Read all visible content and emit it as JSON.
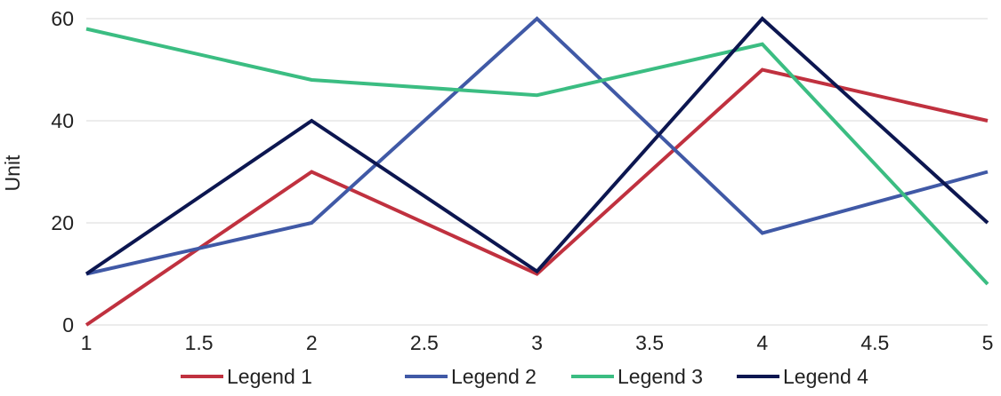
{
  "chart_data": {
    "type": "line",
    "title": "",
    "xlabel": "",
    "ylabel": "Unit",
    "x": [
      1,
      2,
      3,
      4,
      5
    ],
    "xlim": [
      1,
      5
    ],
    "ylim": [
      0,
      60
    ],
    "x_ticks": [
      "1",
      "1.5",
      "2",
      "2.5",
      "3",
      "3.5",
      "4",
      "4.5",
      "5"
    ],
    "y_ticks": [
      "0",
      "20",
      "40",
      "60"
    ],
    "grid": "horizontal",
    "legend_position": "bottom",
    "series": [
      {
        "name": "Legend 1",
        "color": "#c0313f",
        "values": [
          0,
          30,
          10,
          50,
          40
        ]
      },
      {
        "name": "Legend 2",
        "color": "#4059a6",
        "values": [
          10,
          20,
          60,
          18,
          30
        ]
      },
      {
        "name": "Legend 3",
        "color": "#3bbd82",
        "values": [
          58,
          48,
          45,
          55,
          8
        ]
      },
      {
        "name": "Legend 4",
        "color": "#0c1650",
        "values": [
          10,
          40,
          10.5,
          60,
          20
        ]
      }
    ]
  }
}
